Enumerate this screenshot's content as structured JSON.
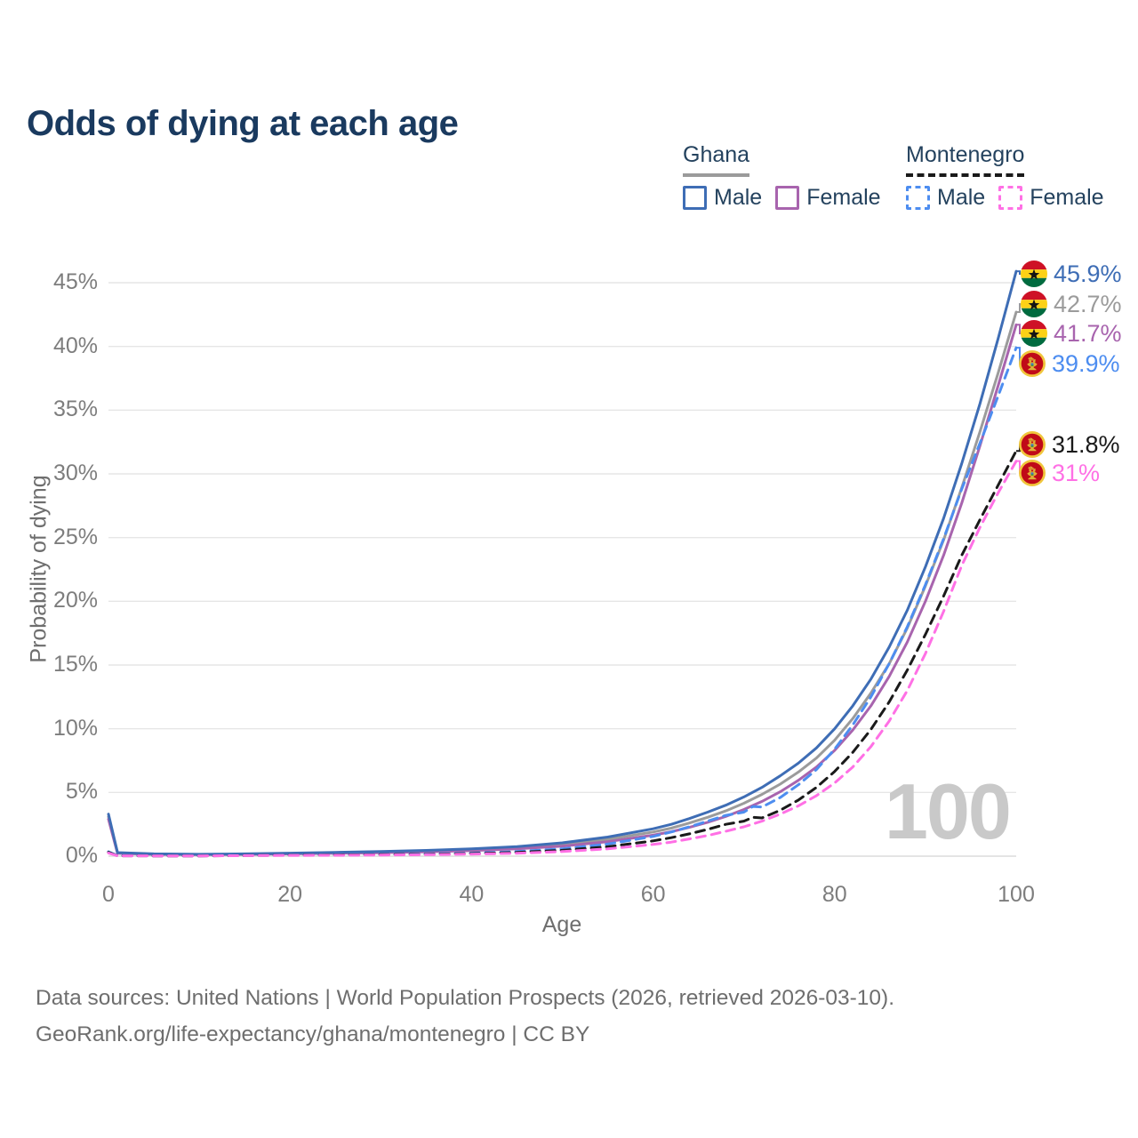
{
  "title": "Odds of dying at each age",
  "legend": {
    "ghana": {
      "label": "Ghana",
      "items": [
        {
          "label": "Male"
        },
        {
          "label": "Female"
        }
      ]
    },
    "montenegro": {
      "label": "Montenegro",
      "items": [
        {
          "label": "Male"
        },
        {
          "label": "Female"
        }
      ]
    }
  },
  "colors": {
    "title": "#1a3a5f",
    "ghana": "#9b9b9b",
    "ghana_male": "#3e6db5",
    "ghana_female": "#a864ae",
    "mont": "#1a1a1a",
    "mont_male": "#4d8df0",
    "mont_female": "#ff70e5",
    "grid": "#e6e6e6",
    "watermark": "#c9c9c9"
  },
  "watermark": "100",
  "endpoints": [
    {
      "value": 45.9,
      "value_label": "45.9%",
      "flag": "ghana",
      "color": "#3e6db5"
    },
    {
      "value": 42.7,
      "value_label": "42.7%",
      "flag": "ghana",
      "color": "#9b9b9b"
    },
    {
      "value": 41.7,
      "value_label": "41.7%",
      "flag": "ghana",
      "color": "#a864ae"
    },
    {
      "value": 39.9,
      "value_label": "39.9%",
      "flag": "montenegro",
      "color": "#4d8df0"
    },
    {
      "value": 31.8,
      "value_label": "31.8%",
      "flag": "montenegro",
      "color": "#1a1a1a"
    },
    {
      "value": 31.0,
      "value_label": "31%",
      "flag": "montenegro",
      "color": "#ff70e5"
    }
  ],
  "footer": {
    "line1": "Data sources: United Nations | World Population Prospects (2026, retrieved 2026-03-10).",
    "line2": "GeoRank.org/life-expectancy/ghana/montenegro | CC BY"
  },
  "chart_data": {
    "type": "line",
    "title": "Odds of dying at each age",
    "xlabel": "Age",
    "ylabel": "Probability of dying",
    "xlim": [
      0,
      100
    ],
    "ylim_pct": [
      0,
      46
    ],
    "grid": "horizontal",
    "legend_position": "top-right",
    "x_ticks": [
      {
        "value": 0,
        "label": "0"
      },
      {
        "value": 20,
        "label": "20"
      },
      {
        "value": 40,
        "label": "40"
      },
      {
        "value": 60,
        "label": "60"
      },
      {
        "value": 80,
        "label": "80"
      },
      {
        "value": 100,
        "label": "100"
      }
    ],
    "y_ticks": [
      {
        "value": 0,
        "label": "0%"
      },
      {
        "value": 5,
        "label": "5%"
      },
      {
        "value": 10,
        "label": "10%"
      },
      {
        "value": 15,
        "label": "15%"
      },
      {
        "value": 20,
        "label": "20%"
      },
      {
        "value": 25,
        "label": "25%"
      },
      {
        "value": 30,
        "label": "30%"
      },
      {
        "value": 35,
        "label": "35%"
      },
      {
        "value": 40,
        "label": "40%"
      },
      {
        "value": 45,
        "label": "45%"
      }
    ],
    "series": [
      {
        "id": "ghana",
        "name": "Ghana",
        "color": "#9b9b9b",
        "dash": "solid",
        "points": [
          [
            0,
            3.1
          ],
          [
            1,
            0.25
          ],
          [
            5,
            0.16
          ],
          [
            10,
            0.13
          ],
          [
            15,
            0.16
          ],
          [
            20,
            0.21
          ],
          [
            25,
            0.26
          ],
          [
            30,
            0.32
          ],
          [
            35,
            0.4
          ],
          [
            40,
            0.5
          ],
          [
            45,
            0.66
          ],
          [
            50,
            0.92
          ],
          [
            55,
            1.32
          ],
          [
            60,
            1.9
          ],
          [
            62,
            2.2
          ],
          [
            64,
            2.6
          ],
          [
            66,
            3.05
          ],
          [
            68,
            3.55
          ],
          [
            70,
            4.15
          ],
          [
            72,
            4.85
          ],
          [
            74,
            5.65
          ],
          [
            76,
            6.6
          ],
          [
            78,
            7.7
          ],
          [
            80,
            9.1
          ],
          [
            82,
            10.8
          ],
          [
            84,
            12.8
          ],
          [
            86,
            15.1
          ],
          [
            88,
            17.9
          ],
          [
            90,
            21.2
          ],
          [
            92,
            24.8
          ],
          [
            94,
            28.9
          ],
          [
            96,
            33.3
          ],
          [
            98,
            37.9
          ],
          [
            100,
            42.7
          ]
        ]
      },
      {
        "id": "ghana-female",
        "name": "Ghana Female",
        "color": "#a864ae",
        "dash": "solid",
        "points": [
          [
            0,
            2.9
          ],
          [
            1,
            0.22
          ],
          [
            5,
            0.14
          ],
          [
            10,
            0.12
          ],
          [
            15,
            0.14
          ],
          [
            20,
            0.18
          ],
          [
            25,
            0.22
          ],
          [
            30,
            0.27
          ],
          [
            35,
            0.34
          ],
          [
            40,
            0.43
          ],
          [
            45,
            0.57
          ],
          [
            50,
            0.79
          ],
          [
            55,
            1.14
          ],
          [
            60,
            1.65
          ],
          [
            62,
            1.92
          ],
          [
            64,
            2.26
          ],
          [
            66,
            2.66
          ],
          [
            68,
            3.12
          ],
          [
            70,
            3.66
          ],
          [
            72,
            4.3
          ],
          [
            74,
            5.05
          ],
          [
            76,
            5.95
          ],
          [
            78,
            7.0
          ],
          [
            80,
            8.3
          ],
          [
            82,
            9.9
          ],
          [
            84,
            11.8
          ],
          [
            86,
            14.1
          ],
          [
            88,
            16.8
          ],
          [
            90,
            20.0
          ],
          [
            92,
            23.6
          ],
          [
            94,
            27.7
          ],
          [
            96,
            32.2
          ],
          [
            98,
            36.9
          ],
          [
            100,
            41.7
          ]
        ]
      },
      {
        "id": "ghana-male",
        "name": "Ghana Male",
        "color": "#3e6db5",
        "dash": "solid",
        "points": [
          [
            0,
            3.3
          ],
          [
            1,
            0.28
          ],
          [
            5,
            0.18
          ],
          [
            10,
            0.15
          ],
          [
            15,
            0.18
          ],
          [
            20,
            0.24
          ],
          [
            25,
            0.3
          ],
          [
            30,
            0.36
          ],
          [
            35,
            0.45
          ],
          [
            40,
            0.57
          ],
          [
            45,
            0.75
          ],
          [
            50,
            1.05
          ],
          [
            55,
            1.5
          ],
          [
            60,
            2.15
          ],
          [
            62,
            2.5
          ],
          [
            64,
            2.95
          ],
          [
            66,
            3.45
          ],
          [
            68,
            4.0
          ],
          [
            70,
            4.65
          ],
          [
            72,
            5.4
          ],
          [
            74,
            6.3
          ],
          [
            76,
            7.3
          ],
          [
            78,
            8.5
          ],
          [
            80,
            10.0
          ],
          [
            82,
            11.8
          ],
          [
            84,
            13.9
          ],
          [
            86,
            16.4
          ],
          [
            88,
            19.3
          ],
          [
            90,
            22.7
          ],
          [
            92,
            26.5
          ],
          [
            94,
            30.8
          ],
          [
            96,
            35.5
          ],
          [
            98,
            40.6
          ],
          [
            100,
            45.9
          ]
        ]
      },
      {
        "id": "montenegro-male",
        "name": "Montenegro Male",
        "color": "#4d8df0",
        "dash": "dashed",
        "points": [
          [
            0,
            0.35
          ],
          [
            1,
            0.04
          ],
          [
            5,
            0.03
          ],
          [
            10,
            0.03
          ],
          [
            15,
            0.06
          ],
          [
            20,
            0.1
          ],
          [
            25,
            0.12
          ],
          [
            30,
            0.14
          ],
          [
            35,
            0.18
          ],
          [
            40,
            0.24
          ],
          [
            45,
            0.36
          ],
          [
            50,
            0.58
          ],
          [
            55,
            0.95
          ],
          [
            60,
            1.55
          ],
          [
            62,
            1.9
          ],
          [
            64,
            2.3
          ],
          [
            66,
            2.75
          ],
          [
            68,
            3.2
          ],
          [
            70,
            3.45
          ],
          [
            71,
            3.9
          ],
          [
            72,
            3.85
          ],
          [
            74,
            4.6
          ],
          [
            76,
            5.6
          ],
          [
            78,
            6.8
          ],
          [
            80,
            8.4
          ],
          [
            82,
            10.3
          ],
          [
            84,
            12.5
          ],
          [
            86,
            15.1
          ],
          [
            88,
            18.0
          ],
          [
            90,
            21.3
          ],
          [
            92,
            24.9
          ],
          [
            94,
            28.8
          ],
          [
            96,
            32.4
          ],
          [
            98,
            36.1
          ],
          [
            100,
            39.9
          ]
        ]
      },
      {
        "id": "montenegro",
        "name": "Montenegro",
        "color": "#1a1a1a",
        "dash": "dashed",
        "points": [
          [
            0,
            0.3
          ],
          [
            1,
            0.03
          ],
          [
            5,
            0.02
          ],
          [
            10,
            0.02
          ],
          [
            15,
            0.05
          ],
          [
            20,
            0.08
          ],
          [
            25,
            0.1
          ],
          [
            30,
            0.12
          ],
          [
            35,
            0.15
          ],
          [
            40,
            0.2
          ],
          [
            45,
            0.29
          ],
          [
            50,
            0.46
          ],
          [
            55,
            0.74
          ],
          [
            60,
            1.2
          ],
          [
            62,
            1.45
          ],
          [
            64,
            1.75
          ],
          [
            66,
            2.1
          ],
          [
            68,
            2.5
          ],
          [
            70,
            2.75
          ],
          [
            71,
            3.05
          ],
          [
            72,
            3.0
          ],
          [
            74,
            3.6
          ],
          [
            76,
            4.4
          ],
          [
            78,
            5.4
          ],
          [
            80,
            6.65
          ],
          [
            82,
            8.15
          ],
          [
            84,
            9.95
          ],
          [
            86,
            12.1
          ],
          [
            88,
            14.6
          ],
          [
            90,
            17.4
          ],
          [
            92,
            20.4
          ],
          [
            94,
            23.6
          ],
          [
            96,
            26.4
          ],
          [
            98,
            29.1
          ],
          [
            100,
            31.8
          ]
        ]
      },
      {
        "id": "montenegro-female",
        "name": "Montenegro Female",
        "color": "#ff70e5",
        "dash": "dashed",
        "points": [
          [
            0,
            0.25
          ],
          [
            1,
            0.03
          ],
          [
            5,
            0.02
          ],
          [
            10,
            0.02
          ],
          [
            15,
            0.04
          ],
          [
            20,
            0.06
          ],
          [
            25,
            0.07
          ],
          [
            30,
            0.09
          ],
          [
            35,
            0.12
          ],
          [
            40,
            0.16
          ],
          [
            45,
            0.23
          ],
          [
            50,
            0.36
          ],
          [
            55,
            0.57
          ],
          [
            60,
            0.92
          ],
          [
            62,
            1.1
          ],
          [
            64,
            1.35
          ],
          [
            66,
            1.62
          ],
          [
            68,
            1.95
          ],
          [
            70,
            2.3
          ],
          [
            72,
            2.75
          ],
          [
            74,
            3.3
          ],
          [
            76,
            3.95
          ],
          [
            78,
            4.75
          ],
          [
            80,
            5.75
          ],
          [
            82,
            7.0
          ],
          [
            84,
            8.6
          ],
          [
            86,
            10.6
          ],
          [
            88,
            13.0
          ],
          [
            90,
            15.9
          ],
          [
            92,
            19.2
          ],
          [
            94,
            22.8
          ],
          [
            96,
            25.8
          ],
          [
            98,
            28.5
          ],
          [
            100,
            31.0
          ]
        ]
      }
    ]
  }
}
